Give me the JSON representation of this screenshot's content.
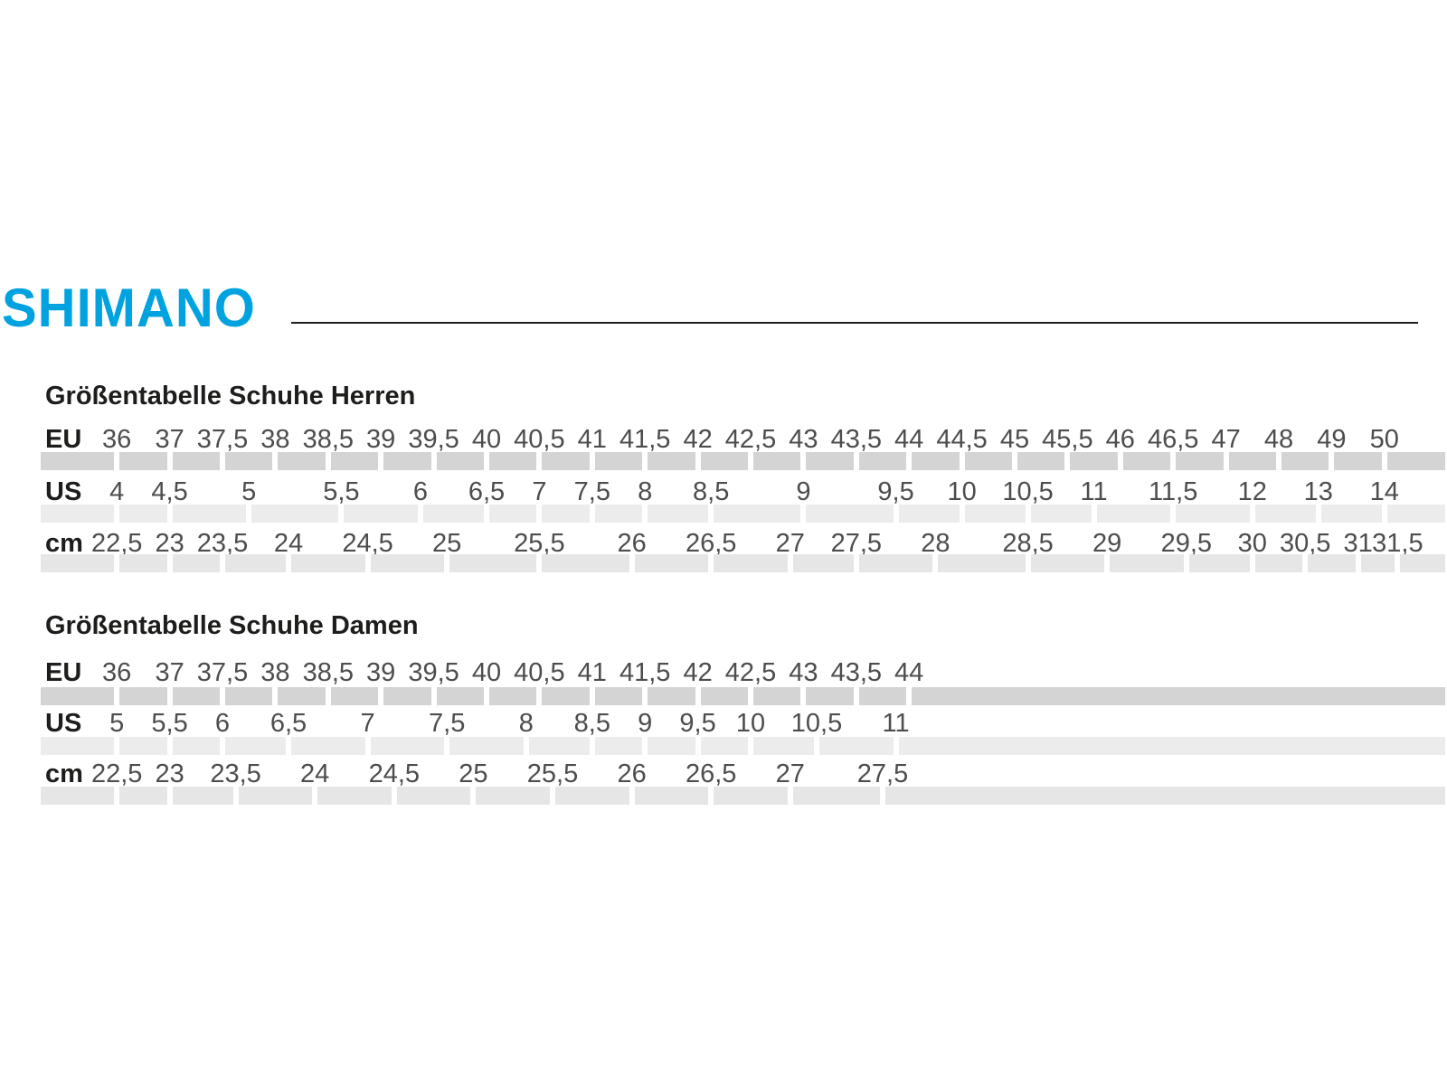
{
  "logo": {
    "text": "SHIMANO",
    "color": "#00A2E0"
  },
  "colors": {
    "heading_text": "#1d1d1b",
    "value_text": "#4d4d4d",
    "strip_eu": "#d4d4d4",
    "strip_us": "#ececec",
    "strip_cm": "#e6e6e6"
  },
  "sections": [
    {
      "title": "Größentabelle Schuhe Herren",
      "total_units": 50,
      "rows": [
        {
          "label": "EU",
          "strip_color": "#d4d4d4",
          "values": [
            "36",
            "37",
            "37,5",
            "38",
            "38,5",
            "39",
            "39,5",
            "40",
            "40,5",
            "41",
            "41,5",
            "42",
            "42,5",
            "43",
            "43,5",
            "44",
            "44,5",
            "45",
            "45,5",
            "46",
            "46,5",
            "47",
            "48",
            "49",
            "50"
          ],
          "spans": [
            2,
            2,
            2,
            2,
            2,
            2,
            2,
            2,
            2,
            2,
            2,
            2,
            2,
            2,
            2,
            2,
            2,
            2,
            2,
            2,
            2,
            2,
            2,
            2,
            2
          ]
        },
        {
          "label": "US",
          "strip_color": "#ececec",
          "values": [
            "4",
            "4,5",
            "5",
            "5,5",
            "6",
            "6,5",
            "7",
            "7,5",
            "8",
            "8,5",
            "9",
            "9,5",
            "10",
            "10,5",
            "11",
            "11,5",
            "12",
            "13",
            "14"
          ],
          "spans": [
            2,
            2,
            4,
            3,
            3,
            2,
            2,
            2,
            2,
            3,
            4,
            3,
            2,
            3,
            2,
            4,
            2,
            3,
            2
          ]
        },
        {
          "label": "cm",
          "strip_color": "#e6e6e6",
          "values": [
            "22,5",
            "23",
            "23,5",
            "24",
            "24,5",
            "25",
            "25,5",
            "26",
            "26,5",
            "27",
            "27,5",
            "28",
            "28,5",
            "29",
            "29,5",
            "30",
            "30,5",
            "31",
            "31,5"
          ],
          "spans": [
            2,
            2,
            2,
            3,
            3,
            3,
            4,
            3,
            3,
            3,
            2,
            4,
            3,
            3,
            3,
            2,
            2,
            2,
            1
          ]
        }
      ]
    },
    {
      "title": "Größentabelle Schuhe Damen",
      "total_units": 32,
      "rows": [
        {
          "label": "EU",
          "strip_color": "#d4d4d4",
          "values": [
            "36",
            "37",
            "37,5",
            "38",
            "38,5",
            "39",
            "39,5",
            "40",
            "40,5",
            "41",
            "41,5",
            "42",
            "42,5",
            "43",
            "43,5",
            "44"
          ],
          "spans": [
            2,
            2,
            2,
            2,
            2,
            2,
            2,
            2,
            2,
            2,
            2,
            2,
            2,
            2,
            2,
            2
          ]
        },
        {
          "label": "US",
          "strip_color": "#ececec",
          "values": [
            "5",
            "5,5",
            "6",
            "6,5",
            "7",
            "7,5",
            "8",
            "8,5",
            "9",
            "9,5",
            "10",
            "10,5",
            "11"
          ],
          "spans": [
            2,
            2,
            2,
            3,
            3,
            3,
            3,
            2,
            2,
            2,
            2,
            3,
            3
          ]
        },
        {
          "label": "cm",
          "strip_color": "#e6e6e6",
          "values": [
            "22,5",
            "23",
            "23,5",
            "24",
            "24,5",
            "25",
            "25,5",
            "26",
            "26,5",
            "27",
            "27,5"
          ],
          "spans": [
            2,
            2,
            3,
            3,
            3,
            3,
            3,
            3,
            3,
            3,
            4
          ]
        }
      ]
    }
  ]
}
